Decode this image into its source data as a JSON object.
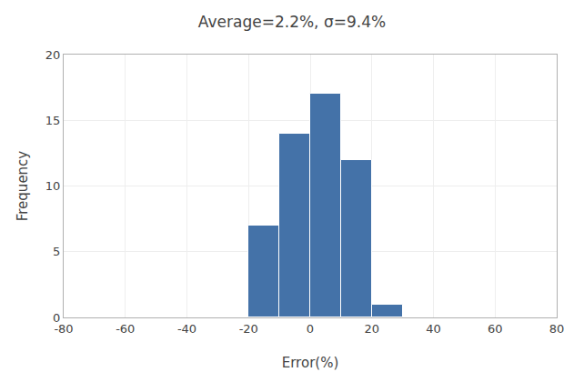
{
  "chart_data": {
    "type": "histogram",
    "title": "Average=2.2%, σ=9.4%",
    "x_label": "Error(%)",
    "y_label": "Frequency",
    "bins": [
      -20,
      -10,
      0,
      10,
      20,
      30
    ],
    "values": [
      7,
      14,
      17,
      12,
      1
    ],
    "color": "#4472a8",
    "xlim": [
      -80,
      80
    ],
    "xticks": [
      -80,
      -60,
      -40,
      -20,
      0,
      20,
      40,
      60,
      80
    ],
    "ylim": [
      0,
      20
    ],
    "yticks": [
      0,
      5,
      10,
      15,
      20
    ],
    "grid": true
  }
}
